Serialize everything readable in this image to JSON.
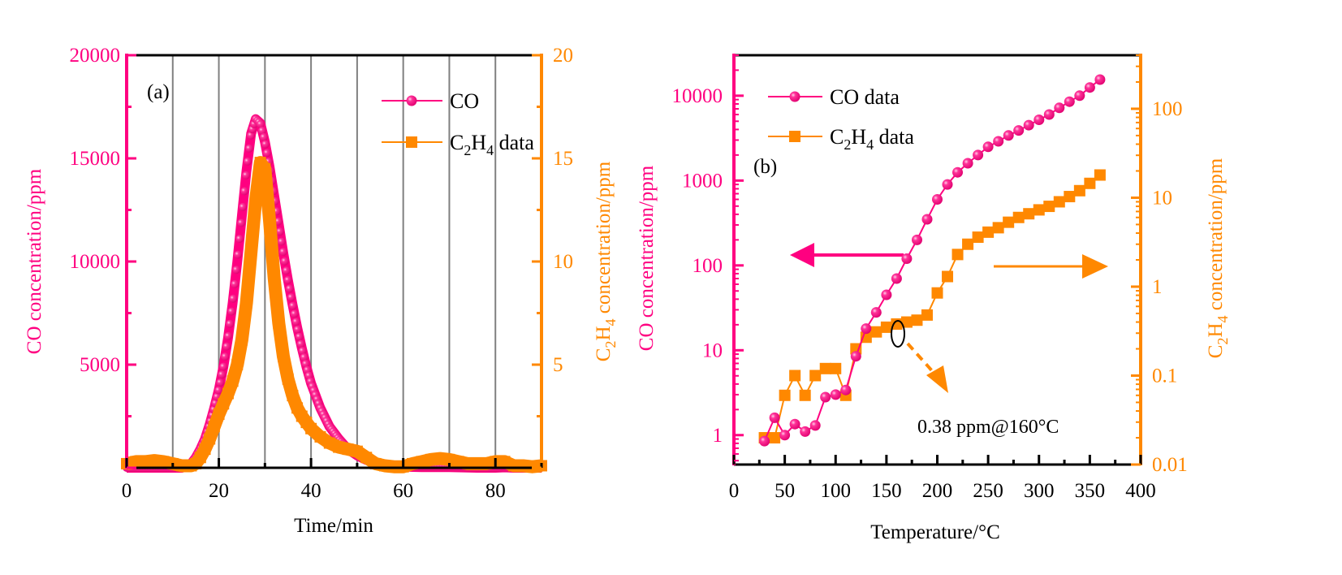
{
  "colors": {
    "co": "#ff0080",
    "c2h4": "#ff8800",
    "axis": "#000000",
    "grid": "#808080"
  },
  "chart_data": [
    {
      "id": "a",
      "type": "line",
      "panel_label": "(a)",
      "title": "",
      "xlabel": "Time/min",
      "ylabel_left": "CO concentration/ppm",
      "ylabel_right_parts": [
        "C",
        "2",
        "H",
        "4",
        " concentration/ppm"
      ],
      "xlim": [
        0,
        90
      ],
      "ylim_left": [
        0,
        20000
      ],
      "ylim_right": [
        0,
        20
      ],
      "x_ticks": [
        0,
        20,
        40,
        60,
        80
      ],
      "y_left_ticks": [
        5000,
        10000,
        15000,
        20000
      ],
      "y_left_tick_labels": [
        "5000",
        "10000",
        "15000",
        "20000"
      ],
      "y_right_ticks": [
        5,
        10,
        15,
        20
      ],
      "y_right_tick_labels": [
        "5",
        "10",
        "15",
        "20"
      ],
      "grid_x": [
        10,
        20,
        30,
        40,
        50,
        60,
        70,
        80
      ],
      "legend": {
        "position": "top-right",
        "entries": [
          {
            "series": "CO",
            "label": "CO",
            "marker": "circle"
          },
          {
            "series": "C2H4",
            "label_parts": [
              "C",
              "2",
              "H",
              "4",
              " data"
            ],
            "marker": "square"
          }
        ]
      },
      "series": [
        {
          "name": "CO",
          "axis": "left",
          "x": [
            0,
            2,
            4,
            6,
            8,
            10,
            12,
            14,
            15,
            16,
            17,
            18,
            19,
            20,
            21,
            22,
            23,
            24,
            25,
            26,
            27,
            28,
            29,
            30,
            31,
            32,
            33,
            34,
            35,
            36,
            37,
            38,
            39,
            40,
            42,
            44,
            46,
            48,
            50,
            52,
            54,
            56,
            58,
            60,
            62,
            64,
            66,
            68,
            70,
            72,
            74,
            76,
            78,
            80,
            82,
            84,
            86,
            88,
            90
          ],
          "values": [
            0,
            0,
            0,
            0,
            0,
            0,
            0,
            200,
            500,
            900,
            1400,
            2100,
            2900,
            3800,
            4900,
            6300,
            8000,
            10000,
            12200,
            14400,
            16200,
            16900,
            16700,
            15800,
            14600,
            13200,
            11800,
            10400,
            9100,
            7900,
            6800,
            5800,
            4900,
            4100,
            2900,
            2000,
            1400,
            900,
            600,
            380,
            240,
            150,
            90,
            60,
            40,
            30,
            30,
            30,
            30,
            20,
            10,
            0,
            0,
            0,
            20,
            0,
            0,
            0,
            0
          ]
        },
        {
          "name": "C2H4",
          "axis": "right",
          "x": [
            0,
            2,
            4,
            6,
            8,
            10,
            12,
            14,
            15,
            16,
            17,
            18,
            19,
            20,
            21,
            22,
            23,
            24,
            25,
            26,
            27,
            28,
            29,
            30,
            31,
            32,
            33,
            34,
            35,
            36,
            37,
            38,
            39,
            40,
            42,
            44,
            46,
            48,
            50,
            52,
            54,
            56,
            58,
            60,
            62,
            64,
            66,
            68,
            70,
            72,
            74,
            76,
            78,
            80,
            82,
            84,
            86,
            88,
            90
          ],
          "values": [
            0.2,
            0.3,
            0.3,
            0.35,
            0.3,
            0.2,
            0.1,
            0.1,
            0.2,
            0.5,
            0.9,
            1.4,
            2.0,
            2.6,
            3.1,
            3.6,
            4.2,
            5.0,
            6.2,
            8.0,
            10.5,
            13.0,
            14.8,
            14.5,
            12.0,
            9.2,
            7.0,
            5.4,
            4.3,
            3.5,
            2.9,
            2.5,
            2.2,
            1.9,
            1.5,
            1.2,
            1.0,
            0.9,
            0.8,
            0.5,
            0.2,
            0.1,
            0.05,
            0.05,
            0.2,
            0.3,
            0.4,
            0.45,
            0.4,
            0.3,
            0.2,
            0.2,
            0.2,
            0.3,
            0.3,
            0.1,
            0.1,
            0.05,
            0.1
          ]
        }
      ]
    },
    {
      "id": "b",
      "type": "scatter",
      "panel_label": "(b)",
      "title": "",
      "xlabel": "Temperature/°C",
      "ylabel_left": "CO concentration/ppm",
      "ylabel_right_parts": [
        "C",
        "2",
        "H",
        "4",
        " concentration/ppm"
      ],
      "xlim": [
        0,
        400
      ],
      "ylim_left": [
        0.45,
        30000
      ],
      "y_left_scale": "log",
      "ylim_right": [
        0.01,
        400
      ],
      "y_right_scale": "log",
      "x_ticks": [
        0,
        50,
        100,
        150,
        200,
        250,
        300,
        350,
        400
      ],
      "y_left_ticks": [
        1,
        10,
        100,
        1000,
        10000
      ],
      "y_left_tick_labels": [
        "1",
        "10",
        "100",
        "1000",
        "10000"
      ],
      "y_right_ticks": [
        0.01,
        0.1,
        1,
        10,
        100
      ],
      "y_right_tick_labels": [
        "0.01",
        "0.1",
        "1",
        "10",
        "100"
      ],
      "legend": {
        "position": "top-left",
        "entries": [
          {
            "series": "CO data",
            "label": "CO data",
            "marker": "circle"
          },
          {
            "series": "C2H4 data",
            "label_parts": [
              "C",
              "2",
              "H",
              "4",
              " data"
            ],
            "marker": "square"
          }
        ]
      },
      "annotation": {
        "text": "0.38 ppm@160°C",
        "target": {
          "x": 160,
          "y_right": 0.38
        }
      },
      "series": [
        {
          "name": "CO data",
          "axis": "left",
          "x": [
            30,
            40,
            50,
            60,
            70,
            80,
            90,
            100,
            110,
            120,
            130,
            140,
            150,
            160,
            170,
            180,
            190,
            200,
            210,
            220,
            230,
            240,
            250,
            260,
            270,
            280,
            290,
            300,
            310,
            320,
            330,
            340,
            350,
            360
          ],
          "values": [
            0.85,
            1.6,
            1.0,
            1.35,
            1.1,
            1.3,
            2.8,
            3.0,
            3.4,
            8.5,
            18,
            28,
            45,
            70,
            120,
            200,
            350,
            600,
            900,
            1250,
            1600,
            2000,
            2500,
            2900,
            3400,
            3900,
            4500,
            5200,
            6000,
            7200,
            8500,
            10000,
            12500,
            15500
          ]
        },
        {
          "name": "C2H4 data",
          "axis": "right",
          "x": [
            30,
            40,
            50,
            60,
            70,
            80,
            90,
            100,
            110,
            120,
            130,
            140,
            150,
            160,
            170,
            180,
            190,
            200,
            210,
            220,
            230,
            240,
            250,
            260,
            270,
            280,
            290,
            300,
            310,
            320,
            330,
            340,
            350,
            360
          ],
          "values": [
            0.02,
            0.02,
            0.06,
            0.1,
            0.06,
            0.1,
            0.12,
            0.12,
            0.06,
            0.2,
            0.27,
            0.31,
            0.35,
            0.38,
            0.4,
            0.42,
            0.48,
            0.85,
            1.3,
            2.3,
            3.0,
            3.6,
            4.1,
            4.6,
            5.3,
            6.0,
            6.6,
            7.3,
            8.0,
            9.0,
            10.3,
            12.0,
            14.5,
            18.0
          ]
        }
      ]
    }
  ]
}
